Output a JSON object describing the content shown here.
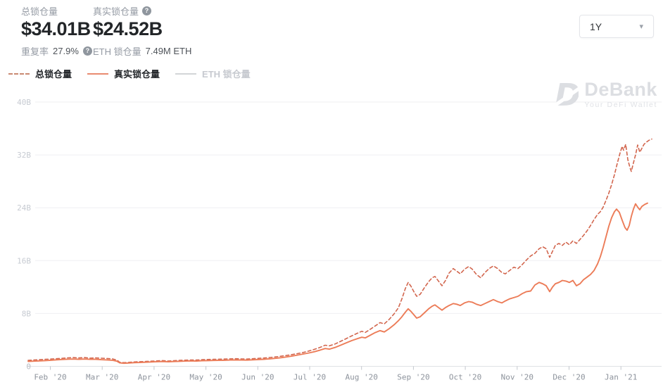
{
  "header": {
    "total": {
      "label": "总锁仓量",
      "value": "$34.01B",
      "sub_label": "重复率",
      "sub_value": "27.9%"
    },
    "real": {
      "label": "真实锁仓量",
      "value": "$24.52B",
      "sub_label": "ETH 锁仓量",
      "sub_value": "7.49M ETH"
    }
  },
  "controls": {
    "range_value": "1Y"
  },
  "legend": [
    {
      "label": "总锁仓量",
      "style": "dashed",
      "color": "#c98a72",
      "active": true
    },
    {
      "label": "真实锁仓量",
      "style": "solid",
      "color": "#e98b70",
      "active": true
    },
    {
      "label": "ETH 锁仓量",
      "style": "solid",
      "color": "#d3d5d8",
      "active": false
    }
  ],
  "watermark": {
    "name": "DeBank",
    "tagline": "Your DeFi Wallet"
  },
  "colors": {
    "series_total": "#d2664e",
    "series_real": "#ec7c58",
    "grid": "#efeff2",
    "axis": "#dfe1e5"
  },
  "chart_data": {
    "type": "line",
    "title": "DeFi TVL over 1 year",
    "xlabel": "",
    "ylabel": "",
    "ylim": [
      0,
      40
    ],
    "grid": true,
    "legend_position": "top-left",
    "x_ticks": [
      "Feb '20",
      "Mar '20",
      "Apr '20",
      "May '20",
      "Jun '20",
      "Jul '20",
      "Aug '20",
      "Sep '20",
      "Oct '20",
      "Nov '20",
      "Dec '20",
      "Jan '21"
    ],
    "y_ticks": [
      {
        "label": "0",
        "value": 0
      },
      {
        "label": "8B",
        "value": 8
      },
      {
        "label": "16B",
        "value": 16
      },
      {
        "label": "24B",
        "value": 24
      },
      {
        "label": "32B",
        "value": 32
      },
      {
        "label": "40B",
        "value": 40
      }
    ],
    "unit": "USD billions",
    "series": [
      {
        "name": "总锁仓量",
        "style": "dashed",
        "color": "#d2664e",
        "hidden": false,
        "points": [
          [
            40,
            0.9
          ],
          [
            48,
            0.95
          ],
          [
            56,
            1.0
          ],
          [
            64,
            1.05
          ],
          [
            72,
            1.1
          ],
          [
            80,
            1.15
          ],
          [
            88,
            1.2
          ],
          [
            96,
            1.28
          ],
          [
            104,
            1.32
          ],
          [
            112,
            1.27
          ],
          [
            120,
            1.32
          ],
          [
            128,
            1.24
          ],
          [
            136,
            1.28
          ],
          [
            144,
            1.22
          ],
          [
            152,
            1.18
          ],
          [
            160,
            1.12
          ],
          [
            166,
            0.95
          ],
          [
            170,
            0.62
          ],
          [
            176,
            0.55
          ],
          [
            183,
            0.6
          ],
          [
            191,
            0.66
          ],
          [
            199,
            0.7
          ],
          [
            207,
            0.74
          ],
          [
            215,
            0.78
          ],
          [
            223,
            0.82
          ],
          [
            231,
            0.86
          ],
          [
            239,
            0.8
          ],
          [
            247,
            0.85
          ],
          [
            255,
            0.9
          ],
          [
            263,
            0.93
          ],
          [
            271,
            0.96
          ],
          [
            279,
            0.95
          ],
          [
            287,
            1.0
          ],
          [
            295,
            1.03
          ],
          [
            303,
            1.05
          ],
          [
            311,
            1.08
          ],
          [
            319,
            1.1
          ],
          [
            327,
            1.13
          ],
          [
            335,
            1.15
          ],
          [
            343,
            1.12
          ],
          [
            351,
            1.1
          ],
          [
            359,
            1.15
          ],
          [
            367,
            1.2
          ],
          [
            375,
            1.26
          ],
          [
            383,
            1.33
          ],
          [
            391,
            1.42
          ],
          [
            399,
            1.52
          ],
          [
            407,
            1.64
          ],
          [
            415,
            1.78
          ],
          [
            423,
            1.93
          ],
          [
            431,
            2.1
          ],
          [
            439,
            2.32
          ],
          [
            447,
            2.58
          ],
          [
            455,
            2.88
          ],
          [
            462,
            3.2
          ],
          [
            468,
            3.1
          ],
          [
            476,
            3.38
          ],
          [
            484,
            3.78
          ],
          [
            492,
            4.2
          ],
          [
            500,
            4.62
          ],
          [
            508,
            5.02
          ],
          [
            514,
            5.3
          ],
          [
            519,
            5.12
          ],
          [
            526,
            5.6
          ],
          [
            533,
            6.1
          ],
          [
            540,
            6.62
          ],
          [
            546,
            6.42
          ],
          [
            553,
            7.1
          ],
          [
            560,
            7.95
          ],
          [
            566,
            8.85
          ],
          [
            571,
            10.2
          ],
          [
            576,
            11.8
          ],
          [
            580,
            12.7
          ],
          [
            584,
            12.1
          ],
          [
            588,
            11.3
          ],
          [
            592,
            10.6
          ],
          [
            597,
            10.9
          ],
          [
            603,
            11.9
          ],
          [
            609,
            12.8
          ],
          [
            614,
            13.4
          ],
          [
            618,
            13.6
          ],
          [
            623,
            12.9
          ],
          [
            628,
            12.2
          ],
          [
            633,
            13.0
          ],
          [
            638,
            14.1
          ],
          [
            644,
            14.8
          ],
          [
            649,
            14.4
          ],
          [
            654,
            14.0
          ],
          [
            660,
            14.7
          ],
          [
            666,
            15.1
          ],
          [
            671,
            14.7
          ],
          [
            677,
            13.9
          ],
          [
            683,
            13.4
          ],
          [
            689,
            14.2
          ],
          [
            695,
            14.8
          ],
          [
            701,
            15.2
          ],
          [
            707,
            14.8
          ],
          [
            713,
            14.2
          ],
          [
            718,
            14.0
          ],
          [
            724,
            14.5
          ],
          [
            730,
            15.0
          ],
          [
            736,
            14.8
          ],
          [
            742,
            15.4
          ],
          [
            748,
            16.1
          ],
          [
            754,
            16.7
          ],
          [
            760,
            17.1
          ],
          [
            766,
            17.8
          ],
          [
            771,
            18.1
          ],
          [
            776,
            17.8
          ],
          [
            781,
            16.5
          ],
          [
            785,
            17.4
          ],
          [
            789,
            18.3
          ],
          [
            794,
            18.6
          ],
          [
            799,
            18.3
          ],
          [
            804,
            18.8
          ],
          [
            809,
            18.4
          ],
          [
            814,
            19.0
          ],
          [
            819,
            18.6
          ],
          [
            824,
            19.2
          ],
          [
            829,
            19.8
          ],
          [
            834,
            20.5
          ],
          [
            839,
            21.3
          ],
          [
            844,
            22.2
          ],
          [
            849,
            23.0
          ],
          [
            853,
            23.4
          ],
          [
            857,
            24.1
          ],
          [
            861,
            25.1
          ],
          [
            865,
            26.2
          ],
          [
            869,
            27.5
          ],
          [
            873,
            29.0
          ],
          [
            877,
            30.7
          ],
          [
            881,
            32.3
          ],
          [
            884,
            33.3
          ],
          [
            886,
            32.7
          ],
          [
            889,
            33.6
          ],
          [
            892,
            31.3
          ],
          [
            895,
            30.1
          ],
          [
            897,
            29.5
          ],
          [
            900,
            30.8
          ],
          [
            903,
            32.0
          ],
          [
            906,
            33.5
          ],
          [
            909,
            32.4
          ],
          [
            912,
            33.0
          ],
          [
            915,
            33.6
          ],
          [
            918,
            33.9
          ],
          [
            922,
            34.2
          ],
          [
            926,
            34.4
          ]
        ]
      },
      {
        "name": "真实锁仓量",
        "style": "solid",
        "color": "#ec7c58",
        "hidden": false,
        "points": [
          [
            40,
            0.75
          ],
          [
            48,
            0.78
          ],
          [
            56,
            0.82
          ],
          [
            64,
            0.86
          ],
          [
            72,
            0.92
          ],
          [
            80,
            0.98
          ],
          [
            88,
            1.03
          ],
          [
            96,
            1.08
          ],
          [
            104,
            1.1
          ],
          [
            112,
            1.07
          ],
          [
            120,
            1.1
          ],
          [
            128,
            1.05
          ],
          [
            136,
            1.06
          ],
          [
            144,
            1.0
          ],
          [
            152,
            0.97
          ],
          [
            160,
            0.92
          ],
          [
            166,
            0.78
          ],
          [
            170,
            0.52
          ],
          [
            176,
            0.46
          ],
          [
            183,
            0.5
          ],
          [
            191,
            0.55
          ],
          [
            199,
            0.58
          ],
          [
            207,
            0.62
          ],
          [
            215,
            0.66
          ],
          [
            223,
            0.7
          ],
          [
            231,
            0.72
          ],
          [
            239,
            0.68
          ],
          [
            247,
            0.72
          ],
          [
            255,
            0.76
          ],
          [
            263,
            0.79
          ],
          [
            271,
            0.82
          ],
          [
            279,
            0.8
          ],
          [
            287,
            0.84
          ],
          [
            295,
            0.86
          ],
          [
            303,
            0.88
          ],
          [
            311,
            0.9
          ],
          [
            319,
            0.92
          ],
          [
            327,
            0.95
          ],
          [
            335,
            0.97
          ],
          [
            343,
            0.95
          ],
          [
            351,
            0.94
          ],
          [
            359,
            0.98
          ],
          [
            367,
            1.02
          ],
          [
            375,
            1.07
          ],
          [
            383,
            1.13
          ],
          [
            391,
            1.2
          ],
          [
            399,
            1.3
          ],
          [
            407,
            1.42
          ],
          [
            415,
            1.55
          ],
          [
            423,
            1.7
          ],
          [
            431,
            1.86
          ],
          [
            439,
            2.02
          ],
          [
            447,
            2.22
          ],
          [
            455,
            2.46
          ],
          [
            462,
            2.7
          ],
          [
            468,
            2.6
          ],
          [
            476,
            2.86
          ],
          [
            484,
            3.2
          ],
          [
            492,
            3.56
          ],
          [
            500,
            3.9
          ],
          [
            508,
            4.2
          ],
          [
            514,
            4.4
          ],
          [
            519,
            4.3
          ],
          [
            526,
            4.7
          ],
          [
            533,
            5.1
          ],
          [
            540,
            5.4
          ],
          [
            546,
            5.2
          ],
          [
            553,
            5.7
          ],
          [
            560,
            6.3
          ],
          [
            566,
            6.9
          ],
          [
            571,
            7.5
          ],
          [
            576,
            8.2
          ],
          [
            580,
            8.7
          ],
          [
            584,
            8.3
          ],
          [
            588,
            7.8
          ],
          [
            592,
            7.3
          ],
          [
            597,
            7.5
          ],
          [
            603,
            8.1
          ],
          [
            609,
            8.7
          ],
          [
            614,
            9.1
          ],
          [
            618,
            9.3
          ],
          [
            623,
            8.9
          ],
          [
            628,
            8.5
          ],
          [
            633,
            8.9
          ],
          [
            638,
            9.2
          ],
          [
            644,
            9.5
          ],
          [
            649,
            9.4
          ],
          [
            654,
            9.2
          ],
          [
            660,
            9.6
          ],
          [
            666,
            9.8
          ],
          [
            671,
            9.7
          ],
          [
            677,
            9.4
          ],
          [
            683,
            9.2
          ],
          [
            689,
            9.5
          ],
          [
            695,
            9.8
          ],
          [
            701,
            10.1
          ],
          [
            707,
            9.8
          ],
          [
            713,
            9.6
          ],
          [
            718,
            9.9
          ],
          [
            724,
            10.2
          ],
          [
            730,
            10.4
          ],
          [
            736,
            10.6
          ],
          [
            742,
            11.0
          ],
          [
            748,
            11.3
          ],
          [
            754,
            11.4
          ],
          [
            760,
            12.3
          ],
          [
            766,
            12.7
          ],
          [
            771,
            12.5
          ],
          [
            776,
            12.2
          ],
          [
            781,
            11.3
          ],
          [
            785,
            12.0
          ],
          [
            789,
            12.5
          ],
          [
            794,
            12.7
          ],
          [
            799,
            13.0
          ],
          [
            804,
            12.9
          ],
          [
            809,
            12.7
          ],
          [
            814,
            13.0
          ],
          [
            819,
            12.2
          ],
          [
            824,
            12.5
          ],
          [
            829,
            13.1
          ],
          [
            834,
            13.5
          ],
          [
            839,
            13.9
          ],
          [
            844,
            14.5
          ],
          [
            849,
            15.5
          ],
          [
            853,
            16.6
          ],
          [
            857,
            18.0
          ],
          [
            861,
            19.6
          ],
          [
            865,
            21.2
          ],
          [
            869,
            22.5
          ],
          [
            873,
            23.4
          ],
          [
            876,
            23.8
          ],
          [
            880,
            23.3
          ],
          [
            884,
            22.1
          ],
          [
            888,
            21.0
          ],
          [
            891,
            20.6
          ],
          [
            894,
            21.3
          ],
          [
            897,
            22.7
          ],
          [
            900,
            23.8
          ],
          [
            903,
            24.6
          ],
          [
            906,
            24.1
          ],
          [
            909,
            23.7
          ],
          [
            912,
            24.2
          ],
          [
            916,
            24.5
          ],
          [
            920,
            24.7
          ]
        ]
      },
      {
        "name": "ETH 锁仓量",
        "style": "solid",
        "color": "#cfd2d6",
        "hidden": true,
        "points": []
      }
    ]
  }
}
